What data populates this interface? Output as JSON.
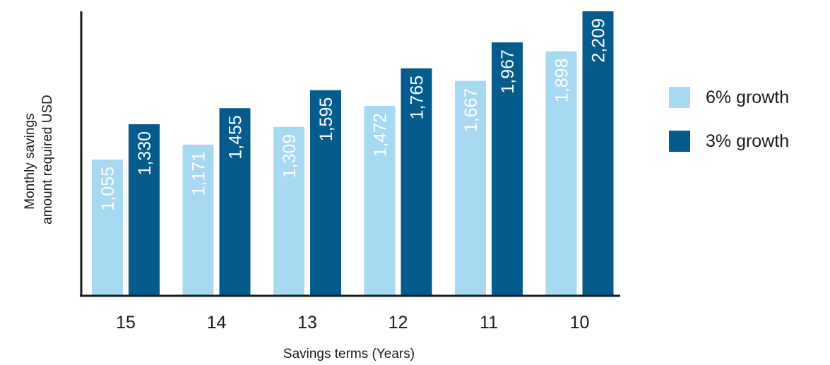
{
  "chart_data": {
    "type": "bar",
    "categories": [
      "15",
      "14",
      "13",
      "12",
      "11",
      "10"
    ],
    "series": [
      {
        "name": "6% growth",
        "color": "#a8d9f2",
        "values": [
          1055,
          1171,
          1309,
          1472,
          1667,
          1898
        ]
      },
      {
        "name": "3% growth",
        "color": "#045b8c",
        "values": [
          1330,
          1455,
          1595,
          1765,
          1967,
          2209
        ]
      }
    ],
    "value_labels": [
      [
        "1,055",
        "1,171",
        "1,309",
        "1,472",
        "1,667",
        "1,898"
      ],
      [
        "1,330",
        "1,455",
        "1,595",
        "1,765",
        "1,967",
        "2,209"
      ]
    ],
    "title": "",
    "xlabel": "Savings terms (Years)",
    "ylabel_lines": [
      "Monthly savings",
      "amount required USD"
    ],
    "ylim": [
      0,
      2209
    ],
    "grid": false,
    "legend_position": "right"
  }
}
